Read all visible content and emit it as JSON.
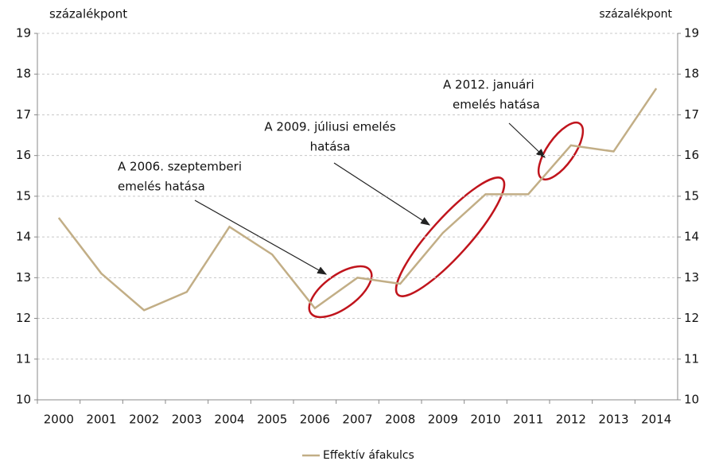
{
  "chart_data": {
    "type": "line",
    "y_label": "százalékpont",
    "y2_label": "százalékpont",
    "categories": [
      "2000",
      "2001",
      "2002",
      "2003",
      "2004",
      "2005",
      "2006",
      "2007",
      "2008",
      "2009",
      "2010",
      "2011",
      "2012",
      "2013",
      "2014"
    ],
    "series": [
      {
        "name": "Effektív áfakulcs",
        "color": "#c2ae86",
        "values": [
          14.47,
          13.1,
          12.2,
          12.65,
          14.25,
          13.57,
          12.25,
          13.0,
          12.85,
          14.1,
          15.05,
          15.05,
          16.25,
          16.1,
          17.65
        ]
      }
    ],
    "ylim": [
      10,
      19
    ],
    "yticks": [
      10,
      11,
      12,
      13,
      14,
      15,
      16,
      17,
      18,
      19
    ],
    "y2lim": [
      10,
      19
    ],
    "y2ticks": [
      10,
      11,
      12,
      13,
      14,
      15,
      16,
      17,
      18,
      19
    ],
    "grid": true,
    "legend": "bottom",
    "annotations": [
      {
        "lines": [
          "A 2006. szeptemberi",
          "emelés  hatása"
        ]
      },
      {
        "lines": [
          "A 2009. júliusi emelés",
          "hatása"
        ]
      },
      {
        "lines": [
          "A 2012. januári",
          "emelés  hatása"
        ]
      }
    ]
  }
}
